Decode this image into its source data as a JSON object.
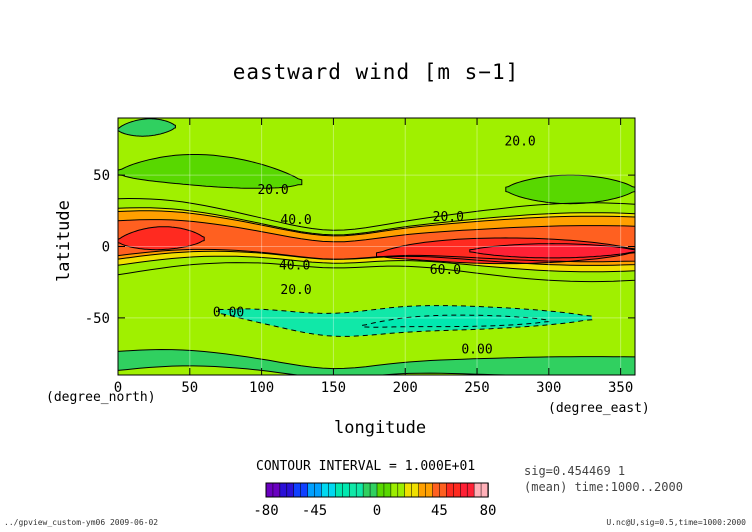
{
  "chart_data": {
    "type": "heatmap",
    "subtype": "filled-contour",
    "title": "eastward wind [m s−1]",
    "xlabel": "longitude",
    "ylabel": "latitude",
    "xunit": "(degree_east)",
    "yunit": "(degree_north)",
    "xlim": [
      0,
      360
    ],
    "ylim": [
      -90,
      90
    ],
    "xticks": [
      0,
      50,
      100,
      150,
      200,
      250,
      300,
      350
    ],
    "yticks": [
      -50,
      0,
      50
    ],
    "contour_interval": "CONTOUR INTERVAL = 1.000E+01",
    "contour_labels": [
      {
        "text": "20.0",
        "lon": 280,
        "lat": 73
      },
      {
        "text": "20.0",
        "lon": 108,
        "lat": 39
      },
      {
        "text": "40.0",
        "lon": 124,
        "lat": 18
      },
      {
        "text": "20.0",
        "lon": 230,
        "lat": 20
      },
      {
        "text": "40.0",
        "lon": 123,
        "lat": -14
      },
      {
        "text": "60.0",
        "lon": 228,
        "lat": -17
      },
      {
        "text": "20.0",
        "lon": 124,
        "lat": -31
      },
      {
        "text": "0.00",
        "lon": 77,
        "lat": -47
      },
      {
        "text": "0.00",
        "lon": 250,
        "lat": -73
      }
    ],
    "fields": [
      {
        "value": 10,
        "kind": "band",
        "lat": 48,
        "half_width": 11,
        "lon_range": [
          0,
          128
        ],
        "amp_east": -4,
        "phase": 0
      },
      {
        "value": 10,
        "kind": "band",
        "lat": 40,
        "half_width": 10,
        "lon_range": [
          270,
          360
        ],
        "amp_east": 0,
        "phase": 0
      },
      {
        "value": 20,
        "kind": "band",
        "lat": 3,
        "half_width": 24,
        "lon_range": [
          0,
          360
        ],
        "amp_east": 0,
        "phase": 0
      },
      {
        "value": 30,
        "kind": "band",
        "lat": 3,
        "half_width": 18,
        "lon_range": [
          0,
          360
        ],
        "amp_east": 0,
        "phase": 0
      },
      {
        "value": 40,
        "kind": "band",
        "lat": 4,
        "half_width": 15,
        "lon_range": [
          0,
          360
        ],
        "amp_east": 0,
        "phase": 0
      },
      {
        "value": 50,
        "kind": "band",
        "lat": 2,
        "half_width": 11,
        "lon_range": [
          0,
          360
        ],
        "amp_east": 0,
        "phase": 0
      },
      {
        "value": 60,
        "kind": "band",
        "lat": 0,
        "half_width": 8,
        "lon_range": [
          0,
          60
        ],
        "amp_east": 0,
        "phase": 0
      },
      {
        "value": 60,
        "kind": "band",
        "lat": -3,
        "half_width": 9,
        "lon_range": [
          180,
          360
        ],
        "amp_east": 0,
        "phase": 0
      },
      {
        "value": 70,
        "kind": "band",
        "lat": -3,
        "half_width": 5,
        "lon_range": [
          245,
          360
        ],
        "amp_east": 0,
        "phase": 0
      },
      {
        "value": -10,
        "kind": "band",
        "lat": -50,
        "half_width": 9,
        "lon_range": [
          70,
          330
        ],
        "amp_east": 0,
        "phase": 0
      },
      {
        "value": -20,
        "kind": "band",
        "lat": -52,
        "half_width": 4,
        "lon_range": [
          170,
          300
        ],
        "amp_east": 0,
        "phase": 0
      },
      {
        "value": 0,
        "kind": "band",
        "lat": 78,
        "half_width": 6,
        "lon_range": [
          0,
          40
        ],
        "amp_east": 0,
        "phase": 0
      },
      {
        "value": 0,
        "kind": "band",
        "lat": -84,
        "half_width": 6,
        "lon_range": [
          0,
          360
        ],
        "amp_east": 0,
        "phase": 0
      }
    ],
    "background_value": 0,
    "colorbar": {
      "ticks": [
        -80,
        -45,
        0,
        45,
        80
      ],
      "range": [
        -80,
        80
      ]
    }
  },
  "texts": {
    "title": "eastward wind [m s−1]",
    "xlabel": "longitude",
    "ylabel": "latitude",
    "xunit": "(degree_east)",
    "yunit": "(degree_north)",
    "contour_interval": "CONTOUR INTERVAL = 1.000E+01",
    "meta_line1": "sig=0.454469 1",
    "meta_line2": "(mean) time:1000..2000",
    "footer_left": "../gpview_custom-ym06  2009-06-02",
    "footer_right": "U.nc@U,sig=0.5,time=1000:2000"
  }
}
